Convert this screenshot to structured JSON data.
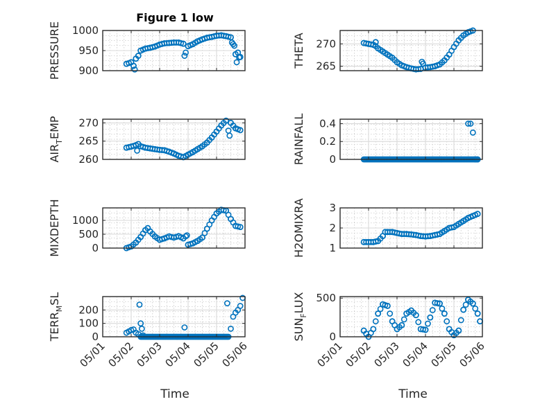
{
  "figure": {
    "title": "Figure 1 low",
    "xlabel": "Time"
  },
  "chart_data": [
    {
      "type": "scatter",
      "ylabel": "PRESSURE",
      "xlim": [
        "05/01",
        "05/06"
      ],
      "x_ticks": [
        "05/01",
        "05/02",
        "05/03",
        "05/04",
        "05/05",
        "05/06"
      ],
      "ylim": [
        900,
        1000
      ],
      "y_ticks": [
        900,
        950,
        1000
      ],
      "x": [
        "05/01 20:00",
        "05/02 00:00",
        "05/02 04:00",
        "05/02 06:00",
        "05/02 08:00",
        "05/02 12:00",
        "05/02 16:00",
        "05/02 20:00",
        "05/03 00:00",
        "05/03 04:00",
        "05/03 08:00",
        "05/03 12:00",
        "05/03 16:00",
        "05/03 20:00",
        "05/04 00:00",
        "05/04 04:00",
        "05/04 08:00",
        "05/04 12:00",
        "05/04 16:00",
        "05/04 20:00",
        "05/05 00:00",
        "05/05 04:00",
        "05/05 08:00",
        "05/05 12:00",
        "05/05 16:00",
        "05/05 20:00",
        "05/02 02:00",
        "05/02 03:00",
        "05/03 21:00",
        "05/05 13:00",
        "05/05 15:00",
        "05/05 17:00",
        "05/05 18:00",
        "05/05 19:00"
      ],
      "y": [
        917,
        921,
        930,
        937,
        950,
        955,
        957,
        960,
        965,
        968,
        969,
        970,
        970,
        967,
        961,
        966,
        973,
        978,
        982,
        984,
        987,
        988,
        986,
        983,
        941,
        934,
        912,
        903,
        937,
        970,
        962,
        921,
        945,
        933
      ]
    },
    {
      "type": "scatter",
      "ylabel": "THETA",
      "xlim": [
        "05/01",
        "05/06"
      ],
      "x_ticks": [
        "05/01",
        "05/02",
        "05/03",
        "05/04",
        "05/05",
        "05/06"
      ],
      "ylim": [
        264,
        273
      ],
      "y_ticks": [
        265,
        270
      ],
      "x": [
        "05/01 20:00",
        "05/02 00:00",
        "05/02 04:00",
        "05/02 06:00",
        "05/02 08:00",
        "05/02 12:00",
        "05/02 16:00",
        "05/02 20:00",
        "05/03 00:00",
        "05/03 04:00",
        "05/03 08:00",
        "05/03 12:00",
        "05/03 16:00",
        "05/03 20:00",
        "05/04 00:00",
        "05/04 04:00",
        "05/04 08:00",
        "05/04 12:00",
        "05/04 16:00",
        "05/04 20:00",
        "05/05 00:00",
        "05/05 04:00",
        "05/05 08:00",
        "05/05 12:00",
        "05/05 16:00",
        "05/05 20:00",
        "05/02 06:00",
        "05/03 21:00"
      ],
      "y": [
        270.2,
        270.0,
        269.8,
        269.5,
        269.0,
        268.3,
        267.6,
        266.9,
        265.9,
        265.2,
        264.8,
        264.5,
        264.3,
        264.4,
        264.7,
        264.8,
        265.0,
        265.4,
        266.3,
        267.6,
        269.3,
        270.8,
        271.9,
        272.6,
        273.0,
        273.3,
        270.4,
        266.0
      ]
    },
    {
      "type": "scatter",
      "ylabel": "AIR_TEMP",
      "ylabel_display": "AIR_TEMP",
      "xlim": [
        "05/01",
        "05/06"
      ],
      "x_ticks": [
        "05/01",
        "05/02",
        "05/03",
        "05/04",
        "05/05",
        "05/06"
      ],
      "ylim": [
        260,
        271
      ],
      "y_ticks": [
        260,
        265,
        270
      ],
      "x": [
        "05/01 20:00",
        "05/02 00:00",
        "05/02 04:00",
        "05/02 06:00",
        "05/02 08:00",
        "05/02 12:00",
        "05/02 16:00",
        "05/02 20:00",
        "05/03 00:00",
        "05/03 04:00",
        "05/03 08:00",
        "05/03 12:00",
        "05/03 16:00",
        "05/03 20:00",
        "05/04 00:00",
        "05/04 04:00",
        "05/04 08:00",
        "05/04 12:00",
        "05/04 16:00",
        "05/04 20:00",
        "05/05 00:00",
        "05/05 04:00",
        "05/05 08:00",
        "05/05 12:00",
        "05/05 16:00",
        "05/05 20:00",
        "05/02 05:00",
        "05/05 11:00"
      ],
      "y": [
        263.2,
        263.5,
        263.9,
        264.2,
        263.6,
        263.2,
        263.0,
        262.8,
        262.6,
        262.5,
        262.1,
        261.6,
        261.0,
        260.6,
        261.3,
        262.0,
        262.8,
        263.6,
        264.6,
        266.0,
        267.6,
        269.3,
        270.6,
        270.0,
        268.5,
        268.0,
        262.4,
        266.5
      ]
    },
    {
      "type": "scatter",
      "ylabel": "RAINFALL",
      "xlim": [
        "05/01",
        "05/06"
      ],
      "x_ticks": [
        "05/01",
        "05/02",
        "05/03",
        "05/04",
        "05/05",
        "05/06"
      ],
      "ylim": [
        0,
        0.45
      ],
      "y_ticks": [
        0,
        0.2,
        0.4
      ],
      "x": [
        "05/05 12:00",
        "05/05 14:00",
        "05/05 16:00",
        "05/05 18:00",
        "05/05 20:00"
      ],
      "y": [
        0.4,
        0.4,
        0.3,
        0,
        0
      ],
      "note_zero_run": [
        "05/01 20:00",
        "05/05 20:00"
      ]
    },
    {
      "type": "scatter",
      "ylabel": "MIXDEPTH",
      "xlim": [
        "05/01",
        "05/06"
      ],
      "x_ticks": [
        "05/01",
        "05/02",
        "05/03",
        "05/04",
        "05/05",
        "05/06"
      ],
      "ylim": [
        0,
        1450
      ],
      "y_ticks": [
        0,
        500,
        1000
      ],
      "x": [
        "05/01 20:00",
        "05/02 00:00",
        "05/02 04:00",
        "05/02 08:00",
        "05/02 12:00",
        "05/02 14:00",
        "05/02 16:00",
        "05/02 20:00",
        "05/03 00:00",
        "05/03 04:00",
        "05/03 08:00",
        "05/03 12:00",
        "05/03 16:00",
        "05/03 20:00",
        "05/03 23:00",
        "05/04 00:00",
        "05/04 04:00",
        "05/04 08:00",
        "05/04 12:00",
        "05/04 16:00",
        "05/04 20:00",
        "05/05 00:00",
        "05/05 04:00",
        "05/05 08:00",
        "05/05 12:00",
        "05/05 16:00",
        "05/05 20:00"
      ],
      "y": [
        0,
        60,
        200,
        400,
        650,
        720,
        600,
        420,
        300,
        350,
        420,
        380,
        430,
        350,
        460,
        120,
        170,
        260,
        380,
        700,
        1000,
        1250,
        1380,
        1350,
        1050,
        800,
        760
      ]
    },
    {
      "type": "scatter",
      "ylabel": "H2OMIXRA",
      "xlim": [
        "05/01",
        "05/06"
      ],
      "x_ticks": [
        "05/01",
        "05/02",
        "05/03",
        "05/04",
        "05/05",
        "05/06"
      ],
      "ylim": [
        1,
        3
      ],
      "y_ticks": [
        1,
        2,
        3
      ],
      "x": [
        "05/01 20:00",
        "05/02 00:00",
        "05/02 04:00",
        "05/02 08:00",
        "05/02 12:00",
        "05/02 14:00",
        "05/02 16:00",
        "05/02 20:00",
        "05/03 00:00",
        "05/03 04:00",
        "05/03 08:00",
        "05/03 12:00",
        "05/03 16:00",
        "05/03 20:00",
        "05/04 00:00",
        "05/04 04:00",
        "05/04 08:00",
        "05/04 12:00",
        "05/04 16:00",
        "05/04 20:00",
        "05/05 00:00",
        "05/05 04:00",
        "05/05 08:00",
        "05/05 12:00",
        "05/05 16:00",
        "05/05 20:00"
      ],
      "y": [
        1.3,
        1.3,
        1.3,
        1.35,
        1.6,
        1.8,
        1.8,
        1.8,
        1.75,
        1.7,
        1.7,
        1.68,
        1.65,
        1.6,
        1.58,
        1.6,
        1.65,
        1.7,
        1.85,
        2.0,
        2.05,
        2.2,
        2.35,
        2.5,
        2.6,
        2.7
      ]
    },
    {
      "type": "scatter",
      "ylabel": "TERR_MSL",
      "ylabel_display": "TERR_MSL",
      "xlim": [
        "05/01",
        "05/06"
      ],
      "x_ticks": [
        "05/01",
        "05/02",
        "05/03",
        "05/04",
        "05/05",
        "05/06"
      ],
      "ylim": [
        0,
        300
      ],
      "y_ticks": [
        0,
        100,
        200
      ],
      "x": [
        "05/01 20:00",
        "05/01 22:00",
        "05/02 00:00",
        "05/02 02:00",
        "05/02 04:00",
        "05/02 06:00",
        "05/02 07:00",
        "05/02 08:00",
        "05/02 09:00",
        "05/02 10:00",
        "05/03 21:00",
        "05/05 09:00",
        "05/05 12:00",
        "05/05 14:00",
        "05/05 16:00",
        "05/05 18:00",
        "05/05 20:00",
        "05/05 22:00"
      ],
      "y": [
        30,
        40,
        50,
        55,
        30,
        20,
        240,
        100,
        60,
        10,
        70,
        250,
        60,
        150,
        180,
        200,
        230,
        290
      ],
      "note_zero_run": [
        "05/02 08:00",
        "05/05 10:00"
      ]
    },
    {
      "type": "scatter",
      "ylabel": "SUN_FLUX",
      "ylabel_display": "SUN_FLUX",
      "xlim": [
        "05/01",
        "05/06"
      ],
      "x_ticks": [
        "05/01",
        "05/02",
        "05/03",
        "05/04",
        "05/05",
        "05/06"
      ],
      "ylim": [
        0,
        520
      ],
      "y_ticks": [
        0,
        500
      ],
      "x": [
        "05/01 20:00",
        "05/02 00:00",
        "05/02 04:00",
        "05/02 08:00",
        "05/02 12:00",
        "05/02 16:00",
        "05/02 20:00",
        "05/03 00:00",
        "05/03 04:00",
        "05/03 08:00",
        "05/03 12:00",
        "05/03 16:00",
        "05/03 20:00",
        "05/04 00:00",
        "05/04 04:00",
        "05/04 08:00",
        "05/04 12:00",
        "05/04 16:00",
        "05/04 20:00",
        "05/05 00:00",
        "05/05 04:00",
        "05/05 08:00",
        "05/05 12:00",
        "05/05 16:00",
        "05/05 20:00",
        "05/05 22:00"
      ],
      "y": [
        80,
        0,
        100,
        300,
        420,
        400,
        200,
        100,
        150,
        300,
        340,
        280,
        100,
        90,
        250,
        440,
        430,
        300,
        100,
        20,
        80,
        350,
        480,
        430,
        300,
        200
      ]
    }
  ]
}
